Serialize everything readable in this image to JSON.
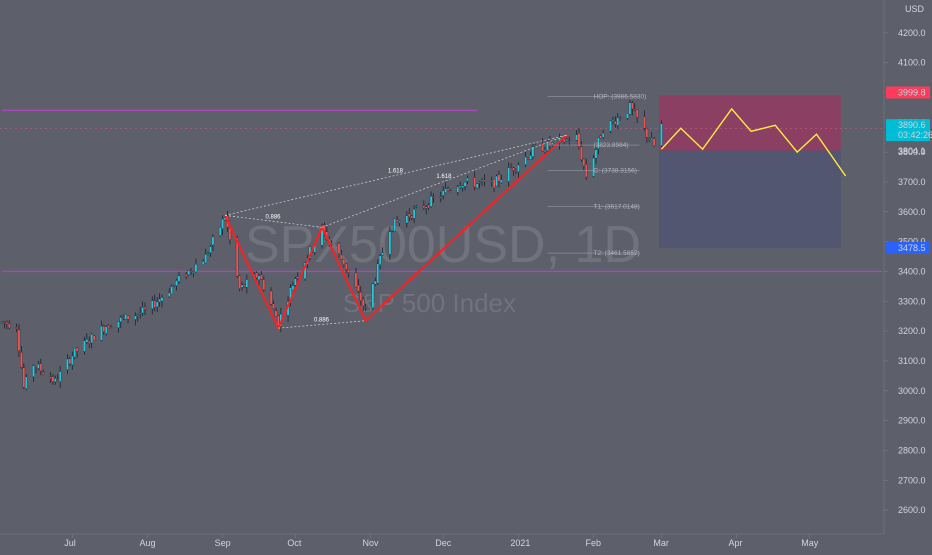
{
  "chart_data": {
    "type": "candlestick",
    "symbol": "SPX500USD, 1D",
    "description": "S&P 500 Index",
    "currency": "USD",
    "colors": {
      "background": "#5d606b",
      "up": "#26c6da",
      "down": "#ef5350",
      "wick": "#1e222d",
      "pattern": "#ff1e1e",
      "projection": "#ffeb3b",
      "hline": "#ab47bc",
      "zone_red": "#c2185b",
      "zone_blue": "#4a4f75",
      "price_tag_red": "#ff3b5c",
      "price_tag_cyan": "#00bcd4",
      "price_tag_blue": "#2962ff"
    },
    "y_axis": {
      "ylim": [
        2520,
        4310
      ],
      "ticks": [
        "4200.0",
        "4100.0",
        "4000.0",
        "3900.0",
        "3800.0",
        "3700.0",
        "3600.0",
        "3500.0",
        "3400.0",
        "3300.0",
        "3200.0",
        "3100.0",
        "3000.0",
        "2900.0",
        "2800.0",
        "2700.0",
        "2600.0"
      ]
    },
    "x_axis": {
      "start_day": "2020-06-02",
      "end_day": "2021-05-31",
      "ticks": [
        {
          "label": "Jul",
          "date": "2020-07-01"
        },
        {
          "label": "Aug",
          "date": "2020-08-01"
        },
        {
          "label": "Sep",
          "date": "2020-09-01"
        },
        {
          "label": "Oct",
          "date": "2020-10-01"
        },
        {
          "label": "Nov",
          "date": "2020-11-01"
        },
        {
          "label": "Dec",
          "date": "2020-12-01"
        },
        {
          "label": "2021",
          "date": "2021-01-01"
        },
        {
          "label": "Feb",
          "date": "2021-02-01"
        },
        {
          "label": "Mar",
          "date": "2021-03-01"
        },
        {
          "label": "Apr",
          "date": "2021-04-01"
        },
        {
          "label": "May",
          "date": "2021-05-01"
        }
      ]
    },
    "price_path": [
      [
        "2020-06-02",
        3230
      ],
      [
        "2020-06-08",
        3220
      ],
      [
        "2020-06-11",
        3010
      ],
      [
        "2020-06-15",
        3090
      ],
      [
        "2020-06-24",
        3030
      ],
      [
        "2020-07-01",
        3120
      ],
      [
        "2020-07-15",
        3220
      ],
      [
        "2020-08-01",
        3270
      ],
      [
        "2020-08-15",
        3380
      ],
      [
        "2020-08-25",
        3450
      ],
      [
        "2020-09-02",
        3585
      ],
      [
        "2020-09-08",
        3340
      ],
      [
        "2020-09-16",
        3390
      ],
      [
        "2020-09-24",
        3230
      ],
      [
        "2020-10-01",
        3380
      ],
      [
        "2020-10-12",
        3540
      ],
      [
        "2020-10-21",
        3430
      ],
      [
        "2020-10-30",
        3270
      ],
      [
        "2020-11-09",
        3550
      ],
      [
        "2020-11-25",
        3630
      ],
      [
        "2020-12-08",
        3700
      ],
      [
        "2020-12-21",
        3690
      ],
      [
        "2021-01-08",
        3810
      ],
      [
        "2021-01-25",
        3850
      ],
      [
        "2021-01-29",
        3720
      ],
      [
        "2021-02-05",
        3880
      ],
      [
        "2021-02-12",
        3920
      ],
      [
        "2021-02-16",
        3950
      ],
      [
        "2021-02-26",
        3820
      ],
      [
        "2021-03-01",
        3890
      ]
    ],
    "harmonic_pattern": {
      "legs": [
        [
          "2020-09-02",
          3588
        ],
        [
          "2020-09-24",
          3210
        ],
        [
          "2020-10-12",
          3548
        ],
        [
          "2020-10-30",
          3235
        ],
        [
          "2021-01-21",
          3857
        ]
      ],
      "ratios": [
        "0.886",
        "0.886",
        "1.618",
        "1.618"
      ]
    },
    "fib_levels": [
      {
        "label": "HOP: (3986.5830)",
        "value": 3986.58
      },
      {
        "label": "(3823.8984)",
        "value": 3823.9
      },
      {
        "label": "C: (3738.3156)",
        "value": 3738.32
      },
      {
        "label": "T1: (3617.0148)",
        "value": 3617.01
      },
      {
        "label": "T2: (3461.5852)",
        "value": 3461.59
      }
    ],
    "zones": {
      "red_zone": [
        3805,
        3990
      ],
      "blue_zone": [
        3478.5,
        3805
      ],
      "start": "2021-02-28",
      "end": "2021-05-14"
    },
    "projection": [
      [
        "2021-03-01",
        3810
      ],
      [
        "2021-03-09",
        3880
      ],
      [
        "2021-03-18",
        3810
      ],
      [
        "2021-03-30",
        3945
      ],
      [
        "2021-04-07",
        3870
      ],
      [
        "2021-04-17",
        3890
      ],
      [
        "2021-04-26",
        3800
      ],
      [
        "2021-05-04",
        3860
      ],
      [
        "2021-05-16",
        3720
      ]
    ],
    "hlines": [
      {
        "value": 3400,
        "start": "2020-06-02",
        "end": "2021-05-31"
      },
      {
        "value": 3940,
        "start": "2020-06-02",
        "end": "2020-12-15"
      }
    ],
    "price_labels": [
      {
        "text": "3999.8",
        "value": 3999.8,
        "color": "#ff3b5c"
      },
      {
        "text": "3890.6",
        "value": 3890.6,
        "color": "#00bcd4",
        "subtext": "03:42:26"
      },
      {
        "text": "3804.1",
        "value": 3804.1,
        "color": "none"
      },
      {
        "text": "3478.5",
        "value": 3478.5,
        "color": "#2962ff"
      }
    ]
  }
}
